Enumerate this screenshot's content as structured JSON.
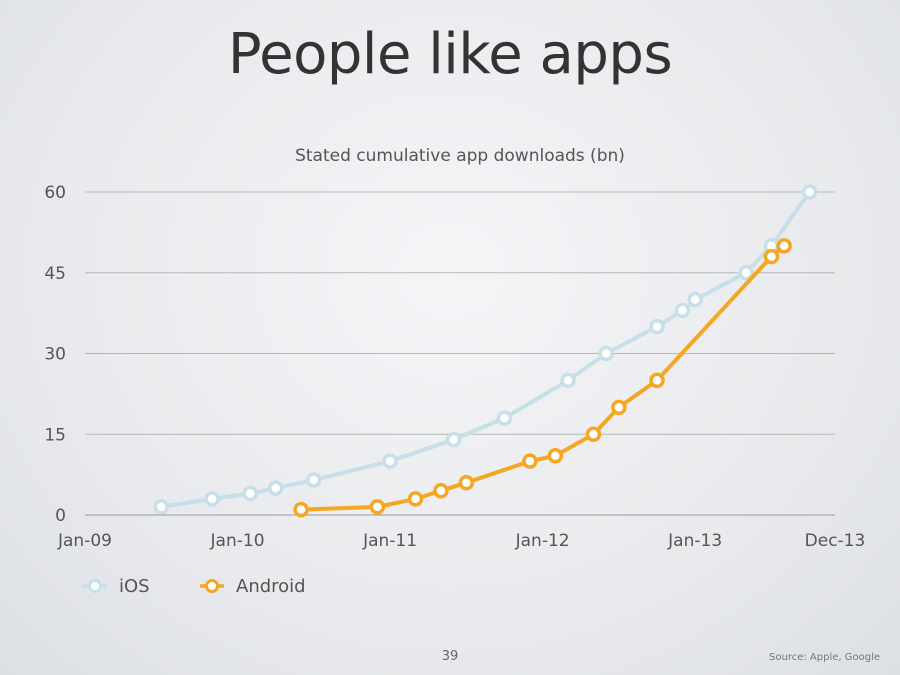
{
  "slide": {
    "title": "People like apps",
    "page_number": "39",
    "source": "Source: Apple, Google"
  },
  "chart_data": {
    "type": "line",
    "title": "Stated cumulative app downloads (bn)",
    "xlabel": "",
    "ylabel": "",
    "x_tick_labels": [
      "Jan-09",
      "Jan-10",
      "Jan-11",
      "Jan-12",
      "Jan-13",
      "Dec-13"
    ],
    "x_ticks": [
      "2009-01",
      "2010-01",
      "2011-01",
      "2012-01",
      "2013-01",
      "2013-12"
    ],
    "xlim": [
      "2009-01",
      "2013-12"
    ],
    "y_ticks": [
      0,
      15,
      30,
      45,
      60
    ],
    "ylim": [
      0,
      60
    ],
    "grid": "horizontal",
    "legend_position": "bottom-left",
    "series": [
      {
        "name": "iOS",
        "color": "#c6dfe8",
        "points": [
          [
            "2009-07",
            1.5
          ],
          [
            "2009-11",
            3
          ],
          [
            "2010-02",
            4
          ],
          [
            "2010-04",
            5
          ],
          [
            "2010-07",
            6.5
          ],
          [
            "2011-01",
            10
          ],
          [
            "2011-06",
            14
          ],
          [
            "2011-10",
            18
          ],
          [
            "2012-03",
            25
          ],
          [
            "2012-06",
            30
          ],
          [
            "2012-10",
            35
          ],
          [
            "2012-12",
            38
          ],
          [
            "2013-01",
            40
          ],
          [
            "2013-05",
            45
          ],
          [
            "2013-07",
            50
          ],
          [
            "2013-10",
            60
          ]
        ]
      },
      {
        "name": "Android",
        "color": "#f5a623",
        "points": [
          [
            "2010-06",
            1
          ],
          [
            "2010-12",
            1.5
          ],
          [
            "2011-03",
            3
          ],
          [
            "2011-05",
            4.5
          ],
          [
            "2011-07",
            6
          ],
          [
            "2011-12",
            10
          ],
          [
            "2012-02",
            11
          ],
          [
            "2012-05",
            15
          ],
          [
            "2012-07",
            20
          ],
          [
            "2012-10",
            25
          ],
          [
            "2013-07",
            48
          ],
          [
            "2013-08",
            50
          ]
        ]
      }
    ]
  }
}
